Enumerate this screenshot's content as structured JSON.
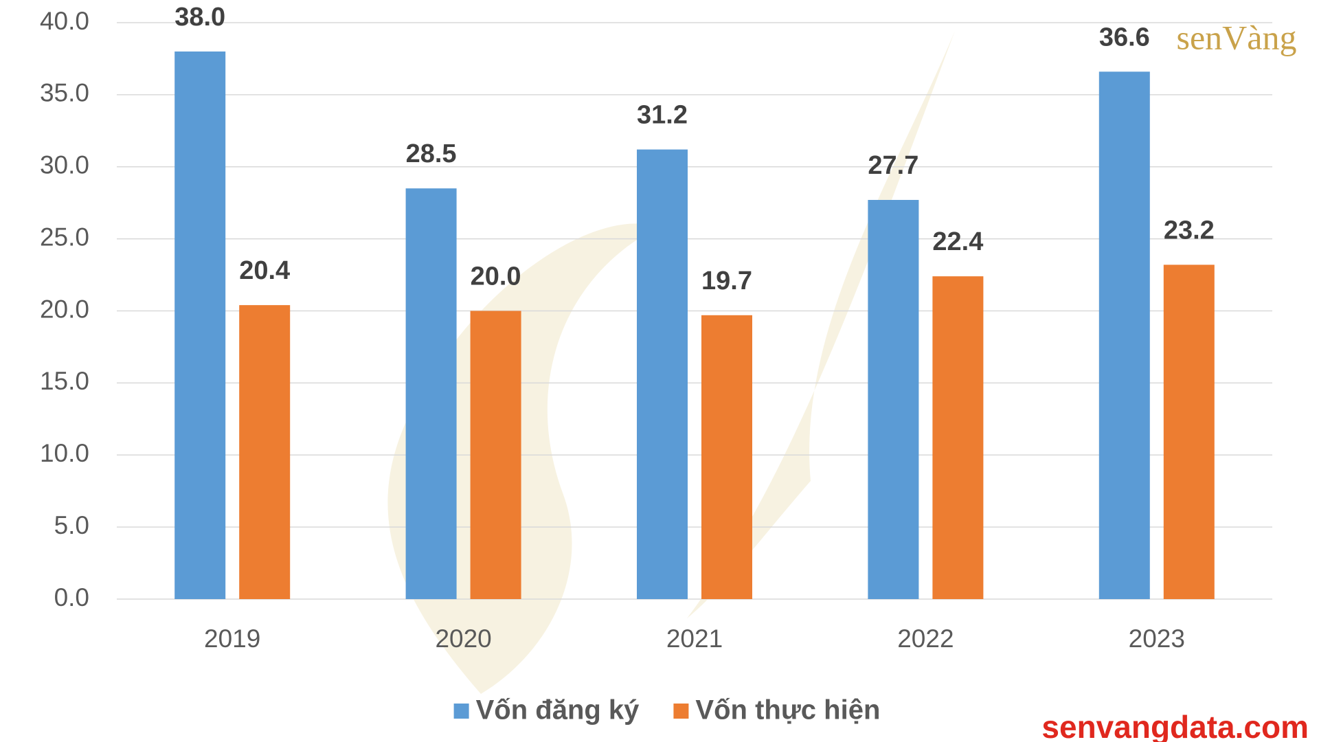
{
  "chart_data": {
    "type": "bar",
    "categories": [
      "2019",
      "2020",
      "2021",
      "2022",
      "2023"
    ],
    "series": [
      {
        "name": "Vốn đăng ký",
        "color": "#5b9bd5",
        "values": [
          38.0,
          28.5,
          31.2,
          27.7,
          36.6
        ],
        "value_labels": [
          "38.0",
          "28.5",
          "31.2",
          "27.7",
          "36.6"
        ]
      },
      {
        "name": "Vốn thực hiện",
        "color": "#ed7d31",
        "values": [
          20.4,
          20.0,
          19.7,
          22.4,
          23.2
        ],
        "value_labels": [
          "20.4",
          "20.0",
          "19.7",
          "22.4",
          "23.2"
        ]
      }
    ],
    "ylim": [
      0,
      40
    ],
    "yticks": [
      {
        "value": 0,
        "label": "0.0"
      },
      {
        "value": 5,
        "label": "5.0"
      },
      {
        "value": 10,
        "label": "10.0"
      },
      {
        "value": 15,
        "label": "15.0"
      },
      {
        "value": 20,
        "label": "20.0"
      },
      {
        "value": 25,
        "label": "25.0"
      },
      {
        "value": 30,
        "label": "30.0"
      },
      {
        "value": 35,
        "label": "35.0"
      },
      {
        "value": 40,
        "label": "40.0"
      }
    ],
    "grid": true,
    "legend": "bottom"
  },
  "brand": {
    "logo": "senVàng",
    "site": "senvangdata.com"
  }
}
